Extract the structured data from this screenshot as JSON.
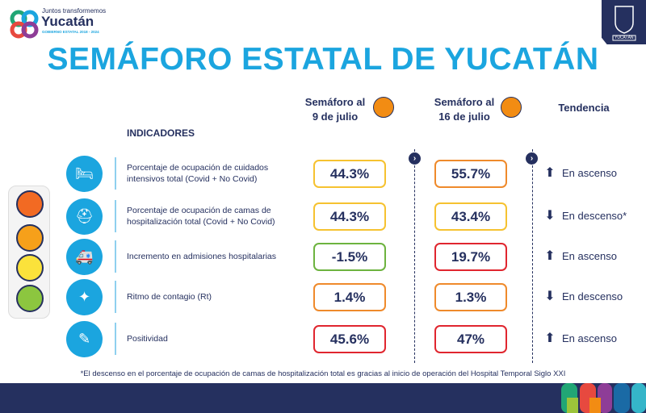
{
  "logo": {
    "tagline": "Juntos transformemos",
    "name": "Yucatán",
    "subtitle": "GOBIERNO ESTATAL 2018 - 2024"
  },
  "crest": {
    "label": "YUCATÁN"
  },
  "title": "SEMÁFORO ESTATAL DE YUCATÁN",
  "columns": {
    "week1": "Semáforo al\n9 de julio",
    "week1_l1": "Semáforo al",
    "week1_l2": "9 de julio",
    "week2_l1": "Semáforo al",
    "week2_l2": "16 de julio",
    "trend": "Tendencia",
    "week1_color": "#f28c13",
    "week2_color": "#f28c13"
  },
  "indicators_header": "INDICADORES",
  "rows": [
    {
      "icon": "icu-bed-icon",
      "label": "Porcentaje de ocupación de cuidados intensivos total (Covid + No Covid)",
      "v1": "44.3%",
      "c1": "#f6c230",
      "v2": "55.7%",
      "c2": "#ef8a2b",
      "trend_icon": "arrow-up-icon",
      "trend": "En ascenso"
    },
    {
      "icon": "hospital-bed-icon",
      "label": "Porcentaje de ocupación de camas de hospitalización total (Covid + No Covid)",
      "v1": "44.3%",
      "c1": "#f6c230",
      "v2": "43.4%",
      "c2": "#f6c230",
      "trend_icon": "arrow-down-icon",
      "trend": "En descenso*"
    },
    {
      "icon": "ambulance-icon",
      "label": "Incremento en admisiones hospitalarias",
      "v1": "-1.5%",
      "c1": "#6db33f",
      "v2": "19.7%",
      "c2": "#e0262f",
      "trend_icon": "arrow-up-icon",
      "trend": "En ascenso"
    },
    {
      "icon": "contagion-icon",
      "label": "Ritmo de contagio (Rt)",
      "v1": "1.4%",
      "c1": "#ef8a2b",
      "v2": "1.3%",
      "c2": "#ef8a2b",
      "trend_icon": "arrow-down-icon",
      "trend": "En descenso"
    },
    {
      "icon": "test-swab-icon",
      "label": "Positividad",
      "v1": "45.6%",
      "c1": "#e0262f",
      "v2": "47%",
      "c2": "#e0262f",
      "trend_icon": "arrow-up-icon",
      "trend": "En ascenso"
    }
  ],
  "footnote": "*El descenso en el porcentaje de ocupación de camas de hospitalización total es gracias al inicio de operación del Hospital Temporal Siglo XXI",
  "colors": {
    "brand_blue": "#1ba5df",
    "navy": "#25305f",
    "red": "#e0262f",
    "orange": "#f28c13",
    "yellow": "#f6c230",
    "green": "#6db33f"
  }
}
